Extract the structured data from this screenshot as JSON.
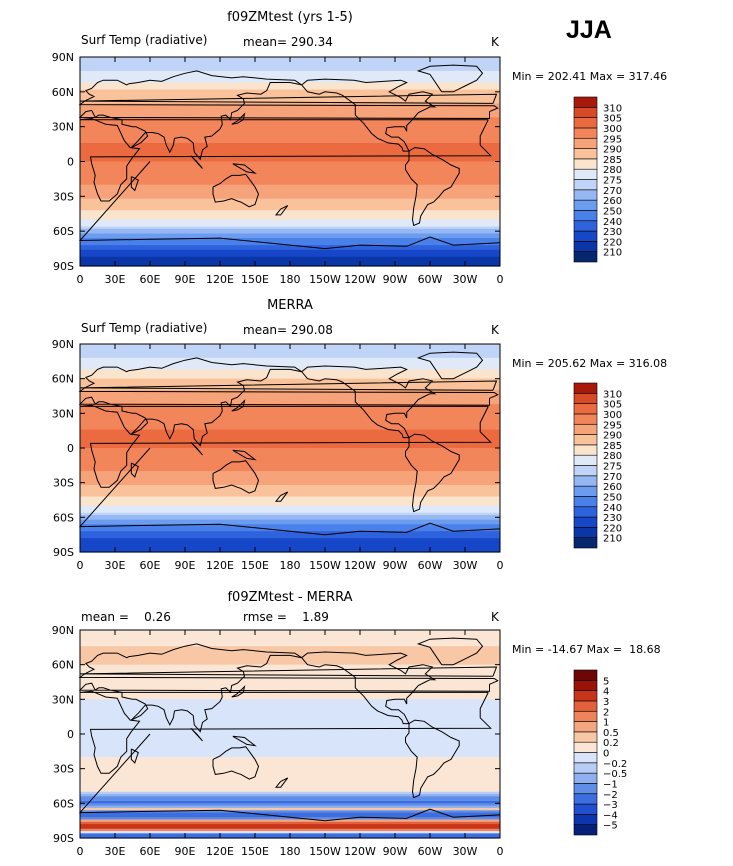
{
  "season": "JJA",
  "panels": [
    {
      "title": "f09ZMtest (yrs 1-5)",
      "left_label": "Surf Temp (radiative)",
      "center_label": "mean= 290.34",
      "right_label": "K",
      "stats": "Min = 202.41 Max = 317.46"
    },
    {
      "title": "MERRA",
      "left_label": "Surf Temp (radiative)",
      "center_label": "mean= 290.08",
      "right_label": "K",
      "stats": "Min = 205.62 Max = 316.08"
    },
    {
      "title": "f09ZMtest - MERRA",
      "left_label": "mean =    0.26",
      "center_label": "rmse =    1.89",
      "right_label": "K",
      "stats": "Min = -14.67 Max =  18.68"
    }
  ],
  "chart_data": [
    {
      "type": "heatmap",
      "title": "f09ZMtest (yrs 1-5)",
      "variable": "Surf Temp (radiative)",
      "units": "K",
      "mean": 290.34,
      "min": 202.41,
      "max": 317.46,
      "x_ticks": [
        "0",
        "30E",
        "60E",
        "90E",
        "120E",
        "150E",
        "180",
        "150W",
        "120W",
        "90W",
        "60W",
        "30W",
        "0"
      ],
      "y_ticks": [
        "90N",
        "60N",
        "30N",
        "0",
        "30S",
        "60S",
        "90S"
      ],
      "xlim": [
        0,
        360
      ],
      "ylim": [
        -90,
        90
      ],
      "colorbar": {
        "levels": [
          "210",
          "220",
          "230",
          "240",
          "250",
          "260",
          "270",
          "275",
          "280",
          "285",
          "290",
          "295",
          "300",
          "305",
          "310"
        ],
        "colors": [
          "#06266e",
          "#0a36a8",
          "#1747c9",
          "#2e63dd",
          "#4a80ea",
          "#6c9cf0",
          "#95b8f4",
          "#bfd4f7",
          "#dfe9f8",
          "#fbe4cd",
          "#f9c29a",
          "#f6a37a",
          "#f2855a",
          "#ec6a40",
          "#d84a25",
          "#a8190c"
        ]
      },
      "zonal_profile": [
        {
          "lat": 90,
          "value": 271
        },
        {
          "lat": 70,
          "value": 278
        },
        {
          "lat": 60,
          "value": 286
        },
        {
          "lat": 45,
          "value": 292
        },
        {
          "lat": 30,
          "value": 298
        },
        {
          "lat": 15,
          "value": 300
        },
        {
          "lat": 0,
          "value": 300
        },
        {
          "lat": -15,
          "value": 297
        },
        {
          "lat": -30,
          "value": 291
        },
        {
          "lat": -45,
          "value": 283
        },
        {
          "lat": -55,
          "value": 276
        },
        {
          "lat": -60,
          "value": 268
        },
        {
          "lat": -65,
          "value": 252
        },
        {
          "lat": -75,
          "value": 232
        },
        {
          "lat": -85,
          "value": 212
        }
      ]
    },
    {
      "type": "heatmap",
      "title": "MERRA",
      "variable": "Surf Temp (radiative)",
      "units": "K",
      "mean": 290.08,
      "min": 205.62,
      "max": 316.08,
      "x_ticks": [
        "0",
        "30E",
        "60E",
        "90E",
        "120E",
        "150E",
        "180",
        "150W",
        "120W",
        "90W",
        "60W",
        "30W",
        "0"
      ],
      "y_ticks": [
        "90N",
        "60N",
        "30N",
        "0",
        "30S",
        "60S",
        "90S"
      ],
      "xlim": [
        0,
        360
      ],
      "ylim": [
        -90,
        90
      ],
      "colorbar": {
        "levels": [
          "210",
          "220",
          "230",
          "240",
          "250",
          "260",
          "270",
          "275",
          "280",
          "285",
          "290",
          "295",
          "300",
          "305",
          "310"
        ],
        "colors": [
          "#06266e",
          "#0a36a8",
          "#1747c9",
          "#2e63dd",
          "#4a80ea",
          "#6c9cf0",
          "#95b8f4",
          "#bfd4f7",
          "#dfe9f8",
          "#fbe4cd",
          "#f9c29a",
          "#f6a37a",
          "#f2855a",
          "#ec6a40",
          "#d84a25",
          "#a8190c"
        ]
      },
      "zonal_profile": [
        {
          "lat": 90,
          "value": 271
        },
        {
          "lat": 70,
          "value": 278
        },
        {
          "lat": 60,
          "value": 285
        },
        {
          "lat": 45,
          "value": 292
        },
        {
          "lat": 30,
          "value": 298
        },
        {
          "lat": 15,
          "value": 300
        },
        {
          "lat": 0,
          "value": 300
        },
        {
          "lat": -15,
          "value": 297
        },
        {
          "lat": -30,
          "value": 291
        },
        {
          "lat": -45,
          "value": 283
        },
        {
          "lat": -55,
          "value": 276
        },
        {
          "lat": -60,
          "value": 268
        },
        {
          "lat": -65,
          "value": 250
        },
        {
          "lat": -75,
          "value": 235
        },
        {
          "lat": -85,
          "value": 220
        }
      ]
    },
    {
      "type": "heatmap",
      "title": "f09ZMtest - MERRA",
      "units": "K",
      "mean": 0.26,
      "rmse": 1.89,
      "min": -14.67,
      "max": 18.68,
      "x_ticks": [
        "0",
        "30E",
        "60E",
        "90E",
        "120E",
        "150E",
        "180",
        "150W",
        "120W",
        "90W",
        "60W",
        "30W",
        "0"
      ],
      "y_ticks": [
        "90N",
        "60N",
        "30N",
        "0",
        "30S",
        "60S",
        "90S"
      ],
      "xlim": [
        0,
        360
      ],
      "ylim": [
        -90,
        90
      ],
      "colorbar": {
        "levels": [
          "−5",
          "−4",
          "−3",
          "−2",
          "−1",
          "−0.5",
          "−0.2",
          "0",
          "0.2",
          "0.5",
          "1",
          "2",
          "3",
          "4",
          "5"
        ],
        "colors": [
          "#06207a",
          "#0e35b0",
          "#2050d0",
          "#3c6ee0",
          "#5f8ee8",
          "#8eb0f0",
          "#b8cdf5",
          "#d8e4f9",
          "#fbe6d6",
          "#f8c8a6",
          "#f4a680",
          "#ef845c",
          "#e4603a",
          "#c8341a",
          "#9a1208",
          "#6e0606"
        ]
      },
      "zonal_profile": [
        {
          "lat": 90,
          "value": 0.0
        },
        {
          "lat": 70,
          "value": 0.3
        },
        {
          "lat": 50,
          "value": 0.1
        },
        {
          "lat": 30,
          "value": 0.0
        },
        {
          "lat": 10,
          "value": -0.1
        },
        {
          "lat": -10,
          "value": -0.1
        },
        {
          "lat": -30,
          "value": 0.1
        },
        {
          "lat": -50,
          "value": 0.0
        },
        {
          "lat": -60,
          "value": -2.5
        },
        {
          "lat": -65,
          "value": 0.2
        },
        {
          "lat": -70,
          "value": -3.5
        },
        {
          "lat": -80,
          "value": 4.5
        },
        {
          "lat": -88,
          "value": -3
        }
      ]
    }
  ]
}
